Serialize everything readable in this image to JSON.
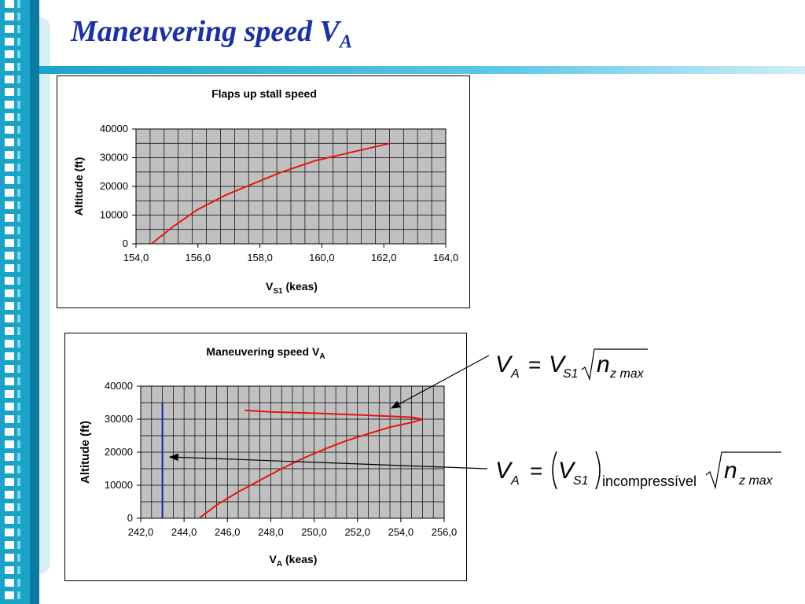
{
  "slide": {
    "title": "Maneuvering speed V",
    "title_sub": "A"
  },
  "colors": {
    "title": "#1a2fa8",
    "sidebar": "#1aa3c9",
    "series_red": "#e8150d",
    "series_blue": "#1a1ab8",
    "plot_bg": "#c0c0c0"
  },
  "chart_data": [
    {
      "type": "line",
      "title": "Flaps up stall speed",
      "xlabel": "V",
      "xlabel_sub": "S1",
      "xlabel_unit": " (keas)",
      "ylabel": "Altitude (ft)",
      "xlim": [
        154,
        164
      ],
      "ylim": [
        0,
        40000
      ],
      "x_ticks": [
        "154,0",
        "156,0",
        "158,0",
        "160,0",
        "162,0",
        "164,0"
      ],
      "y_ticks": [
        "0",
        "10000",
        "20000",
        "30000",
        "40000"
      ],
      "grid": true,
      "series": [
        {
          "color": "#e8150d",
          "x": [
            154.5,
            155.2,
            156.0,
            156.9,
            157.8,
            158.7,
            159.8,
            161.0,
            162.2
          ],
          "y": [
            0,
            6000,
            12000,
            17000,
            21000,
            25000,
            29000,
            32000,
            35000
          ]
        }
      ]
    },
    {
      "type": "line",
      "title": "Maneuvering speed V",
      "title_sub": "A",
      "xlabel": "V",
      "xlabel_sub": "A",
      "xlabel_unit": " (keas)",
      "ylabel": "Altitude (ft)",
      "xlim": [
        242,
        256
      ],
      "ylim": [
        0,
        40000
      ],
      "x_ticks": [
        "242,0",
        "244,0",
        "246,0",
        "248,0",
        "250,0",
        "252,0",
        "254,0",
        "256,0"
      ],
      "y_ticks": [
        "0",
        "10000",
        "20000",
        "30000",
        "40000"
      ],
      "grid": true,
      "series": [
        {
          "color": "#e8150d",
          "x": [
            244.7,
            245.5,
            246.5,
            247.5,
            248.5,
            249.5,
            250.5,
            251.5,
            252.5,
            253.5,
            254.5,
            255.0,
            254.5,
            252.0,
            250.0,
            248.0,
            246.8
          ],
          "y": [
            0,
            4000,
            8000,
            11500,
            15000,
            18200,
            21000,
            23500,
            25600,
            27600,
            29000,
            30000,
            30600,
            31300,
            31800,
            32200,
            32700
          ]
        },
        {
          "color": "#1a1ab8",
          "x": [
            243.0,
            243.0
          ],
          "y": [
            0,
            35000
          ]
        }
      ]
    }
  ],
  "equations": {
    "eq1": {
      "lhs": "V",
      "lhs_sub": "A",
      "equals": "=",
      "v": "V",
      "v_sub": "S1",
      "n": "n",
      "n_sub": "z max"
    },
    "eq2": {
      "lhs": "V",
      "lhs_sub": "A",
      "equals": "=",
      "v": "V",
      "v_sub": "S1",
      "paren_sub": "incompressível",
      "n": "n",
      "n_sub": "z max"
    }
  }
}
